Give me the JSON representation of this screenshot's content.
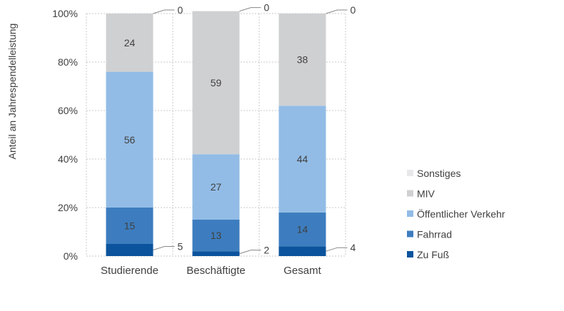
{
  "chart_data": {
    "type": "bar",
    "stacked": true,
    "categories": [
      "Studierende",
      "Beschäftigte",
      "Gesamt"
    ],
    "ylabel": "Anteil an Jahrespendelleistung",
    "ylim": [
      0,
      100
    ],
    "y_unit": "%",
    "yticks": [
      "0%",
      "20%",
      "40%",
      "60%",
      "80%",
      "100%"
    ],
    "grid": true,
    "legend_position": "right",
    "series": [
      {
        "name": "Zu Fuß",
        "color": "#0b539d",
        "values": [
          5,
          2,
          4
        ],
        "labels_outside": true
      },
      {
        "name": "Fahrrad",
        "color": "#3d7dbf",
        "values": [
          15,
          13,
          14
        ]
      },
      {
        "name": "Öffentlicher Verkehr",
        "color": "#92bce6",
        "values": [
          56,
          27,
          44
        ]
      },
      {
        "name": "MIV",
        "color": "#cfd0d2",
        "values": [
          24,
          59,
          38
        ]
      },
      {
        "name": "Sonstiges",
        "color": "#e7e8e9",
        "values": [
          0,
          0,
          0
        ],
        "labels_outside": true
      }
    ]
  }
}
